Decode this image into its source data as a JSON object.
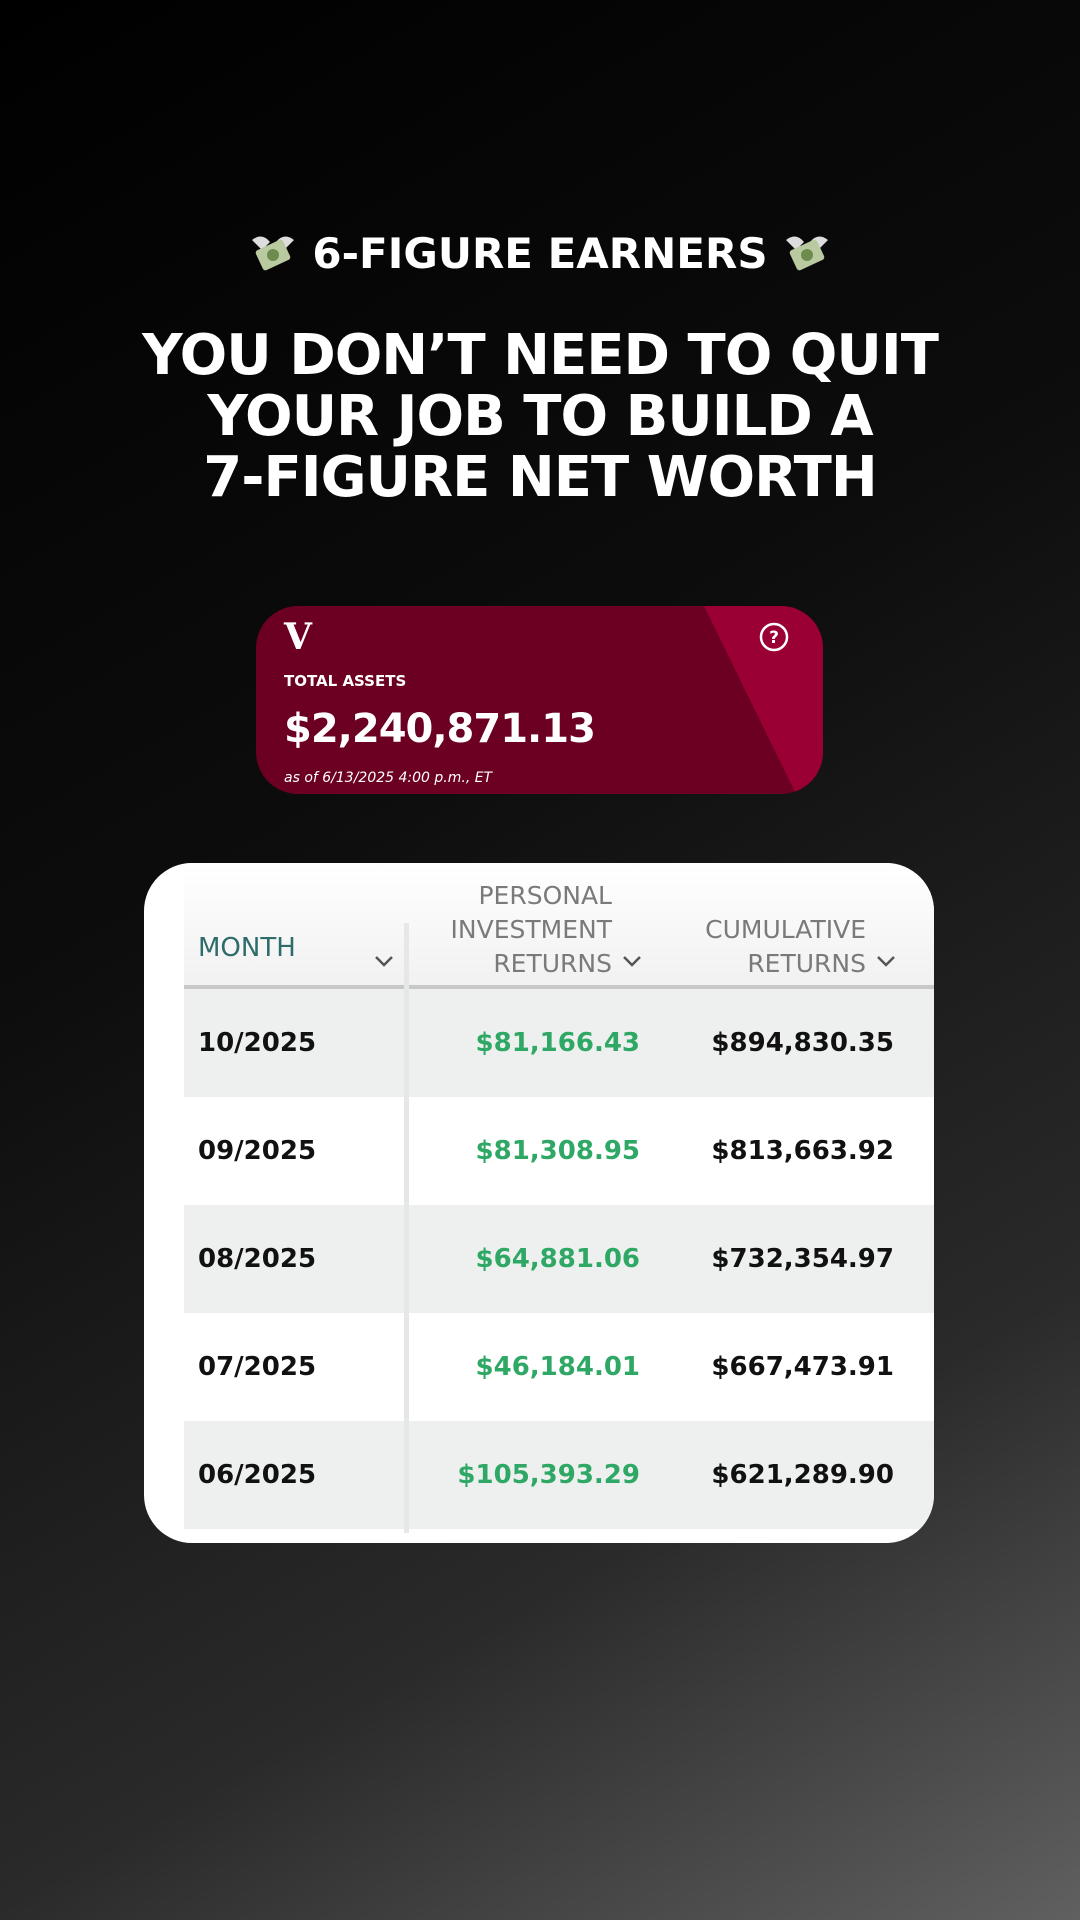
{
  "header": {
    "tag": "6-FIGURE EARNERS",
    "headline": [
      "YOU DON’T NEED TO QUIT",
      "YOUR JOB TO BUILD A",
      "7-FIGURE NET WORTH"
    ]
  },
  "card": {
    "logo": "V",
    "label": "TOTAL ASSETS",
    "amount": "$2,240,871.13",
    "as_of": "as of 6/13/2025 4:00 p.m., ET"
  },
  "table": {
    "columns": [
      "MONTH",
      "PERSONAL INVESTMENT RETURNS",
      "CUMULATIVE RETURNS"
    ],
    "rows": [
      [
        "10/2025",
        "$81,166.43",
        "$894,830.35"
      ],
      [
        "09/2025",
        "$81,308.95",
        "$813,663.92"
      ],
      [
        "08/2025",
        "$64,881.06",
        "$732,354.97"
      ],
      [
        "07/2025",
        "$46,184.01",
        "$667,473.91"
      ],
      [
        "06/2025",
        "$105,393.29",
        "$621,289.90"
      ]
    ]
  }
}
